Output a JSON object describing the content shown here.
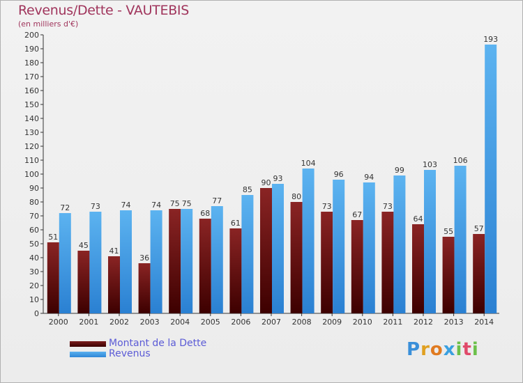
{
  "header": {
    "title": "Revenus/Dette - VAUTEBIS",
    "subtitle": "(en milliers d'€)"
  },
  "legend": {
    "dette_label": "Montant de la Dette",
    "revenus_label": "Revenus"
  },
  "logo": {
    "text": "Proxiti",
    "letters": [
      "P",
      "r",
      "o",
      "x",
      "i",
      "t",
      "i"
    ]
  },
  "colors": {
    "title": "#a0355c",
    "dette": "#7a1c1c",
    "revenus": "#4aa3e8",
    "legend_text": "#5b5bd6"
  },
  "chart_data": {
    "type": "bar",
    "title": "Revenus/Dette - VAUTEBIS",
    "ylabel": "(en milliers d'€)",
    "xlabel": "",
    "ylim": [
      0,
      200
    ],
    "ytick_step": 10,
    "grid": false,
    "legend_position": "bottom-left",
    "categories": [
      "2000",
      "2001",
      "2002",
      "2003",
      "2004",
      "2005",
      "2006",
      "2007",
      "2008",
      "2009",
      "2010",
      "2011",
      "2012",
      "2013",
      "2014"
    ],
    "series": [
      {
        "name": "Montant de la Dette",
        "values": [
          51,
          45,
          41,
          36,
          75,
          68,
          61,
          90,
          80,
          73,
          67,
          73,
          64,
          55,
          57
        ]
      },
      {
        "name": "Revenus",
        "values": [
          72,
          73,
          74,
          74,
          75,
          77,
          85,
          93,
          104,
          96,
          94,
          99,
          103,
          106,
          193
        ]
      }
    ]
  }
}
